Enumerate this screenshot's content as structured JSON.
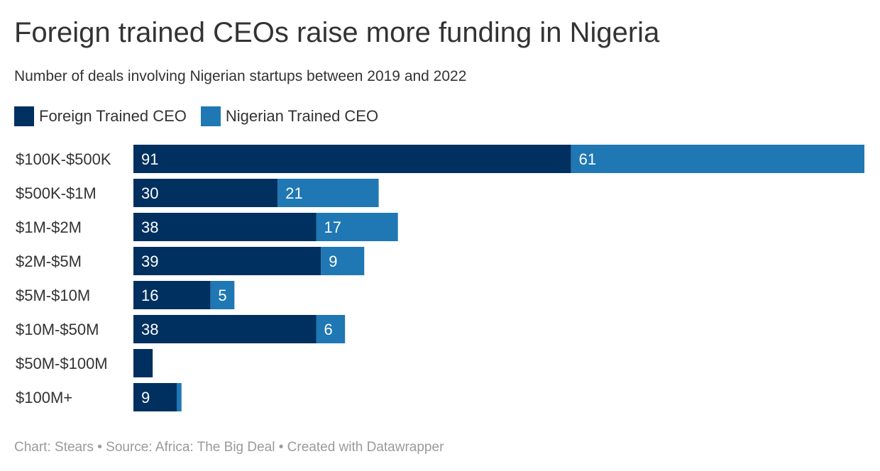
{
  "header": {
    "title": "Foreign trained CEOs raise more funding in Nigeria",
    "subtitle": "Number of deals involving Nigerian startups between 2019 and 2022"
  },
  "legend": [
    {
      "label": "Foreign Trained CEO",
      "color": "#00305f"
    },
    {
      "label": "Nigerian Trained CEO",
      "color": "#1f77b4"
    }
  ],
  "chart_data": {
    "type": "bar",
    "orientation": "horizontal",
    "stacked": true,
    "categories": [
      "$100K-$500K",
      "$500K-$1M",
      "$1M-$2M",
      "$2M-$5M",
      "$5M-$10M",
      "$10M-$50M",
      "$50M-$100M",
      "$100M+"
    ],
    "series": [
      {
        "name": "Foreign Trained CEO",
        "color": "#00305f",
        "values": [
          91,
          30,
          38,
          39,
          16,
          38,
          4,
          9
        ],
        "labels": [
          "91",
          "30",
          "38",
          "39",
          "16",
          "38",
          "",
          "9"
        ]
      },
      {
        "name": "Nigerian Trained CEO",
        "color": "#1f77b4",
        "values": [
          61,
          21,
          17,
          9,
          5,
          6,
          0,
          1
        ],
        "labels": [
          "61",
          "21",
          "17",
          "9",
          "5",
          "6",
          "",
          ""
        ]
      }
    ],
    "xlim": [
      0,
      152
    ],
    "grid": false,
    "legend_position": "top-left"
  },
  "footer": {
    "credit": "Chart: Stears • Source: Africa: The Big Deal • Created with Datawrapper"
  }
}
